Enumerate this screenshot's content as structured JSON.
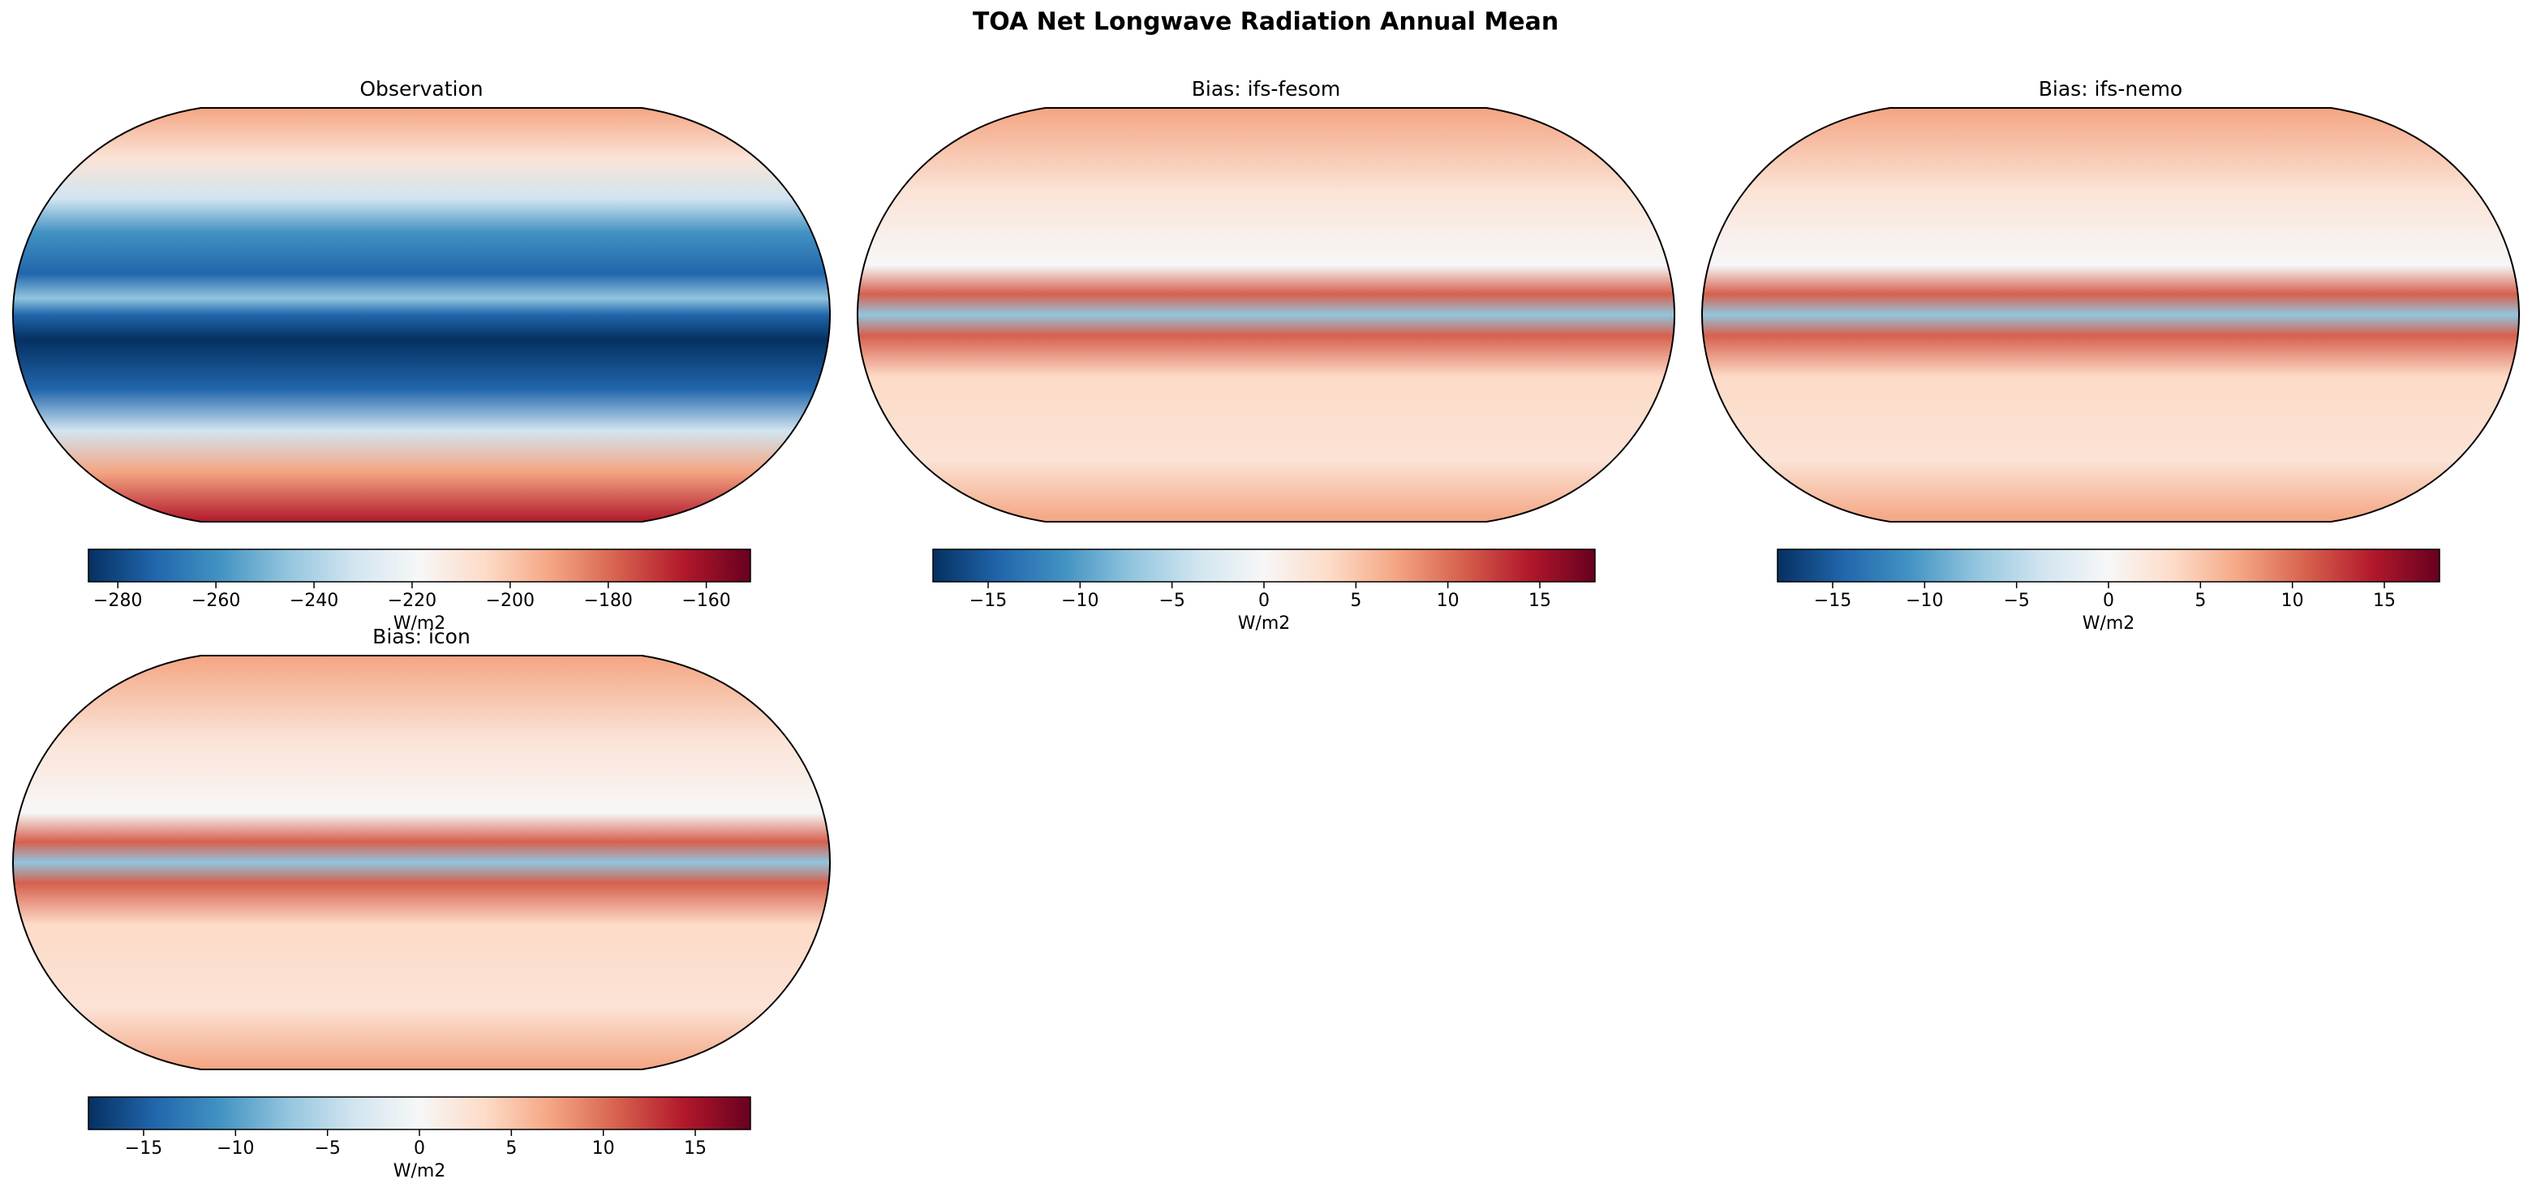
{
  "title": "TOA Net Longwave Radiation Annual Mean",
  "chart_data": [
    {
      "type": "map",
      "title": "Observation",
      "colorbar_label": "W/m2",
      "clim": [
        -286,
        -151
      ],
      "ticks": [
        {
          "value": -280,
          "label": "−280"
        },
        {
          "value": -260,
          "label": "−260"
        },
        {
          "value": -240,
          "label": "−240"
        },
        {
          "value": -220,
          "label": "−220"
        },
        {
          "value": -200,
          "label": "−200"
        },
        {
          "value": -180,
          "label": "−180"
        },
        {
          "value": -160,
          "label": "−160"
        }
      ]
    },
    {
      "type": "map",
      "title": "Bias: ifs-fesom",
      "colorbar_label": "W/m2",
      "clim": [
        -18,
        18
      ],
      "ticks": [
        {
          "value": -15,
          "label": "−15"
        },
        {
          "value": -10,
          "label": "−10"
        },
        {
          "value": -5,
          "label": "−5"
        },
        0,
        5,
        10,
        15
      ]
    },
    {
      "type": "map",
      "title": "Bias: ifs-nemo",
      "colorbar_label": "W/m2",
      "clim": [
        -18,
        18
      ],
      "ticks": [
        {
          "value": -15,
          "label": "−15"
        },
        {
          "value": -10,
          "label": "−10"
        },
        {
          "value": -5,
          "label": "−5"
        },
        0,
        5,
        10,
        15
      ]
    },
    {
      "type": "map",
      "title": "Bias: icon",
      "colorbar_label": "W/m2",
      "clim": [
        -18,
        18
      ],
      "ticks": [
        {
          "value": -15,
          "label": "−15"
        },
        {
          "value": -10,
          "label": "−10"
        },
        {
          "value": -5,
          "label": "−5"
        },
        0,
        5,
        10,
        15
      ]
    }
  ]
}
